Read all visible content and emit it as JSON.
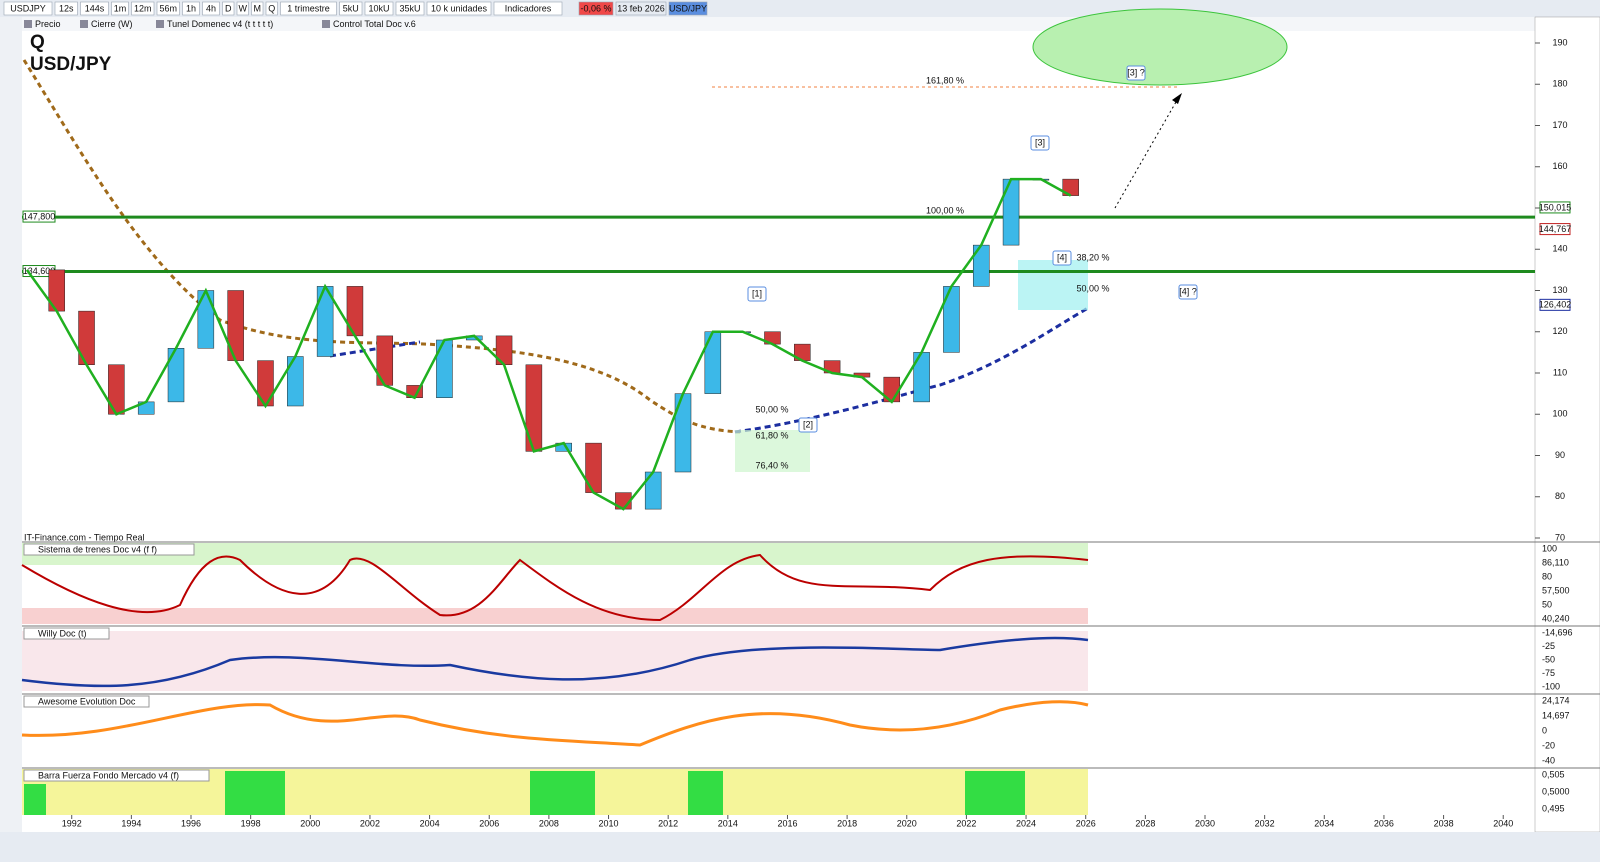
{
  "toolbar": {
    "symbol": "USDJPY",
    "intervals": [
      "12s",
      "144s",
      "1m",
      "12m",
      "56m",
      "1h",
      "4h",
      "D",
      "W",
      "M",
      "Q"
    ],
    "period": "1 trimestre",
    "units": [
      "5kU",
      "10kU",
      "35kU"
    ],
    "unit_size": "10 k unidades",
    "indicators": "Indicadores",
    "change": "-0,06 %",
    "date": "13 feb 2026",
    "pair": "USD/JPY"
  },
  "legend": [
    "Precio",
    "Cierre (W)",
    "Tunel Domenec v4 (t t t t t)",
    "Control Total Doc v.6"
  ],
  "chart": {
    "timeframe": "Q",
    "title": "USD/JPY",
    "source": "IT-Finance.com - Tiempo Real",
    "ylim": [
      70,
      190
    ],
    "yticks": [
      190,
      180,
      170,
      160,
      150,
      140,
      130,
      120,
      110,
      100,
      90,
      80,
      70
    ],
    "xlim": [
      1990.4,
      2041.3
    ],
    "xticks": [
      1992,
      1994,
      1996,
      1998,
      2000,
      2002,
      2004,
      2006,
      2008,
      2010,
      2012,
      2014,
      2016,
      2018,
      2020,
      2022,
      2024,
      2026,
      2028,
      2030,
      2032,
      2034,
      2036,
      2038,
      2040
    ],
    "levels": [
      {
        "value": 147.8,
        "label": "147,800"
      },
      {
        "value": 134.6,
        "label": "134,600"
      }
    ],
    "price_badges": [
      {
        "value": 150.015,
        "label": "150,015"
      },
      {
        "value": 144.767,
        "label": "144,767"
      },
      {
        "value": 126.402,
        "label": "126,402"
      }
    ],
    "price": {
      "years": [
        1991,
        1992,
        1993,
        1994,
        1995,
        1996,
        1997,
        1998,
        1999,
        2000,
        2001,
        2002,
        2003,
        2004,
        2005,
        2006,
        2007,
        2008,
        2009,
        2010,
        2011,
        2012,
        2013,
        2014,
        2015,
        2016,
        2017,
        2018,
        2019,
        2020,
        2021,
        2022,
        2023,
        2024,
        2025,
        2026
      ],
      "close": [
        135,
        125,
        112,
        100,
        103,
        116,
        130,
        113,
        102,
        114,
        131,
        119,
        107,
        104,
        118,
        119,
        112,
        91,
        93,
        81,
        77,
        86,
        105,
        120,
        120,
        117,
        113,
        110,
        109,
        103,
        115,
        131,
        141,
        157,
        157,
        153
      ]
    },
    "annotations": [
      "161,80 %",
      "[3] ?",
      "[3]",
      "100,00 %",
      "[4]",
      "38,20 %",
      "50,00 %",
      "[4] ?",
      "[1]",
      "[2]",
      "50,00 %",
      "61,80 %",
      "76,40 %"
    ]
  },
  "panels": [
    {
      "name": "Sistema de trenes Doc v4 (f f)",
      "axis": [
        "100",
        "86,110",
        "80",
        "57,500",
        "50",
        "40,240"
      ]
    },
    {
      "name": "Willy Doc (t)",
      "axis": [
        "-14,696",
        "-25",
        "-50",
        "-75",
        "-100"
      ]
    },
    {
      "name": "Awesome Evolution Doc",
      "axis": [
        "24,174",
        "14,697",
        "0",
        "-20",
        "-40"
      ]
    },
    {
      "name": "Barra Fuerza Fondo Mercado v4 (f)",
      "axis": [
        "0,505",
        "0,5000",
        "0,495"
      ]
    }
  ]
}
